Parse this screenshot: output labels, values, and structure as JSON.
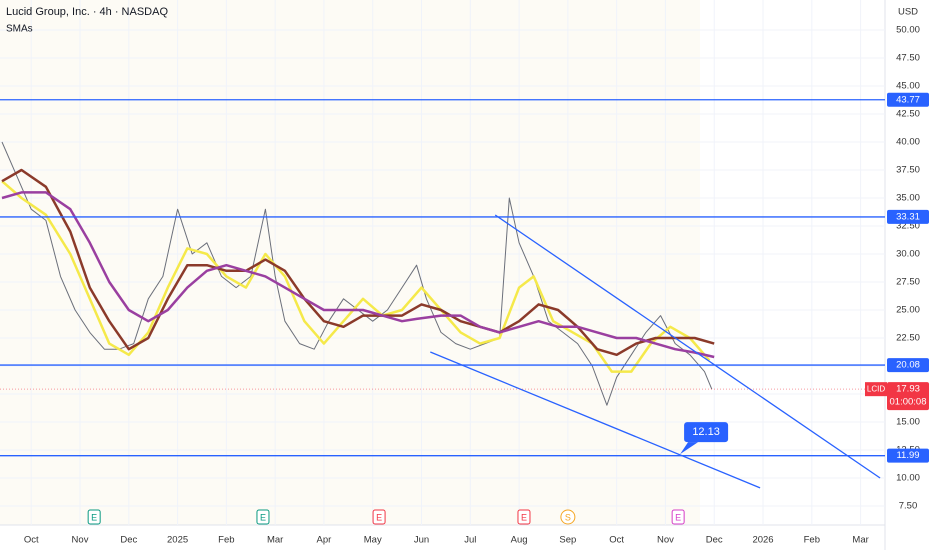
{
  "chart_data": {
    "type": "line",
    "title": "Lucid Group, Inc. · 4h · NASDAQ",
    "subtitle": "SMAs",
    "currency": "USD",
    "xlim": [
      -0.64,
      17.5
    ],
    "ylim": [
      5.8,
      52.68
    ],
    "xticks": [
      {
        "value": 0,
        "label": "Oct"
      },
      {
        "value": 1,
        "label": "Nov"
      },
      {
        "value": 2,
        "label": "Dec"
      },
      {
        "value": 3,
        "label": "2025"
      },
      {
        "value": 4,
        "label": "Feb"
      },
      {
        "value": 5,
        "label": "Mar"
      },
      {
        "value": 6,
        "label": "Apr"
      },
      {
        "value": 7,
        "label": "May"
      },
      {
        "value": 8,
        "label": "Jun"
      },
      {
        "value": 9,
        "label": "Jul"
      },
      {
        "value": 10,
        "label": "Aug"
      },
      {
        "value": 11,
        "label": "Sep"
      },
      {
        "value": 12,
        "label": "Oct"
      },
      {
        "value": 13,
        "label": "Nov"
      },
      {
        "value": 14,
        "label": "Dec"
      },
      {
        "value": 15,
        "label": "2026"
      },
      {
        "value": 16,
        "label": "Feb"
      },
      {
        "value": 17,
        "label": "Mar"
      }
    ],
    "yticks": [
      {
        "value": 7.5,
        "label": "7.50"
      },
      {
        "value": 10,
        "label": "10.00"
      },
      {
        "value": 12.5,
        "label": "12.50"
      },
      {
        "value": 15,
        "label": "15.00"
      },
      {
        "value": 17.5,
        "label": "17.50"
      },
      {
        "value": 20,
        "label": "20.00"
      },
      {
        "value": 22.5,
        "label": "22.50"
      },
      {
        "value": 25,
        "label": "25.00"
      },
      {
        "value": 27.5,
        "label": "27.50"
      },
      {
        "value": 30,
        "label": "30.00"
      },
      {
        "value": 32.5,
        "label": "32.50"
      },
      {
        "value": 35,
        "label": "35.00"
      },
      {
        "value": 37.5,
        "label": "37.50"
      },
      {
        "value": 40,
        "label": "40.00"
      },
      {
        "value": 42.5,
        "label": "42.50"
      },
      {
        "value": 45,
        "label": "45.00"
      },
      {
        "value": 47.5,
        "label": "47.50"
      },
      {
        "value": 50,
        "label": "50.00"
      }
    ],
    "series": [
      {
        "color": "#6b6f7a",
        "x": [
          -0.6,
          -0.3,
          0,
          0.3,
          0.6,
          0.9,
          1.2,
          1.5,
          1.8,
          2.1,
          2.4,
          2.7,
          3.0,
          3.3,
          3.6,
          3.9,
          4.2,
          4.5,
          4.8,
          5.0,
          5.2,
          5.5,
          5.8,
          6.1,
          6.4,
          6.7,
          7.0,
          7.3,
          7.6,
          7.9,
          8.1,
          8.4,
          8.7,
          9.0,
          9.3,
          9.6,
          9.8,
          10.0,
          10.3,
          10.6,
          10.9,
          11.2,
          11.5,
          11.8,
          12.0,
          12.3,
          12.6,
          12.9,
          13.2,
          13.5,
          13.8,
          13.95
        ],
        "values": [
          40,
          37,
          34,
          33,
          28,
          25,
          23,
          21.5,
          21.5,
          22,
          26,
          28,
          34,
          30,
          31,
          28,
          27,
          28,
          34,
          28,
          24,
          22,
          21.5,
          24,
          26,
          25,
          24,
          25,
          27,
          29,
          26,
          23,
          22,
          21.5,
          22,
          22.5,
          35,
          31,
          28,
          24,
          23,
          22,
          20,
          16.5,
          19,
          21,
          23,
          24.5,
          22,
          21,
          19.5,
          17.93
        ]
      },
      {
        "color": "#f5e94a",
        "x": [
          -0.6,
          -0.2,
          0.3,
          0.8,
          1.2,
          1.6,
          2.0,
          2.4,
          2.8,
          3.2,
          3.6,
          4.0,
          4.4,
          4.8,
          5.2,
          5.6,
          6.0,
          6.4,
          6.8,
          7.2,
          7.6,
          8.0,
          8.4,
          8.8,
          9.2,
          9.6,
          10.0,
          10.3,
          10.7,
          11.1,
          11.5,
          11.9,
          12.3,
          12.7,
          13.1,
          13.5,
          13.9
        ],
        "values": [
          36.5,
          35,
          33.5,
          30,
          26,
          22,
          21,
          23,
          27,
          30.5,
          30,
          28,
          27,
          30,
          28,
          24,
          22,
          24,
          26,
          24.5,
          25,
          27,
          25,
          23,
          22,
          22.5,
          27,
          28,
          24,
          23,
          22,
          19.5,
          19.5,
          22,
          23.5,
          22.5,
          20.5
        ]
      },
      {
        "color": "#8b3a2a",
        "x": [
          -0.6,
          -0.2,
          0.3,
          0.8,
          1.2,
          1.6,
          2.0,
          2.4,
          2.8,
          3.2,
          3.6,
          4.0,
          4.4,
          4.8,
          5.2,
          5.6,
          6.0,
          6.4,
          6.8,
          7.2,
          7.6,
          8.0,
          8.4,
          8.8,
          9.2,
          9.6,
          10.0,
          10.4,
          10.8,
          11.2,
          11.6,
          12.0,
          12.4,
          12.8,
          13.2,
          13.6,
          14.0
        ],
        "values": [
          36.5,
          37.5,
          36,
          32,
          27,
          24,
          21.5,
          22.5,
          26,
          29,
          29,
          28.5,
          28.5,
          29.5,
          28.5,
          26,
          24,
          23.5,
          24.5,
          24.5,
          24.5,
          25.5,
          25,
          24,
          23.5,
          23,
          24,
          25.5,
          25,
          23.5,
          21.5,
          21,
          22,
          22.5,
          22.5,
          22.5,
          22
        ]
      },
      {
        "color": "#9a3fa0",
        "x": [
          -0.6,
          -0.2,
          0.3,
          0.8,
          1.2,
          1.6,
          2.0,
          2.4,
          2.8,
          3.2,
          3.6,
          4.0,
          4.4,
          4.8,
          5.2,
          5.6,
          6.0,
          6.4,
          6.8,
          7.2,
          7.6,
          7.9,
          8.4,
          8.8,
          9.2,
          9.6,
          10.0,
          10.4,
          10.8,
          11.2,
          11.6,
          12.0,
          12.4,
          12.8,
          13.2,
          13.6,
          14.0
        ],
        "values": [
          35,
          35.5,
          35.5,
          34,
          31,
          27.5,
          25,
          24,
          25,
          27,
          28.5,
          29,
          28.5,
          28,
          27,
          26,
          25,
          25,
          25,
          24.5,
          24,
          24.2,
          24.5,
          24.5,
          23.5,
          23,
          23.5,
          24,
          23.5,
          23.5,
          23,
          22.5,
          22.5,
          22,
          21.5,
          21.2,
          20.8
        ]
      }
    ],
    "levels": [
      43.77,
      33.31,
      20.08,
      11.99
    ],
    "level_color": "#2962ff",
    "trendlines": [
      {
        "x": [
          9.51,
          17.4
        ],
        "values": [
          33.48,
          10
        ]
      },
      {
        "x": [
          8.18,
          14.94
        ],
        "values": [
          21.25,
          9.11
        ]
      }
    ],
    "callout": {
      "x": 13.3,
      "value": 12.13
    },
    "last_price": {
      "symbol": "LCID",
      "value": 17.93,
      "countdown": "01:00:08",
      "color": "#f23645"
    },
    "events": [
      {
        "label": "E",
        "x": 1.29,
        "color": "#089981"
      },
      {
        "label": "E",
        "x": 4.75,
        "color": "#089981"
      },
      {
        "label": "E",
        "x": 7.13,
        "color": "#f23645"
      },
      {
        "label": "E",
        "x": 10.1,
        "color": "#f23645"
      },
      {
        "label": "S",
        "x": 11.0,
        "color": "#f5a623"
      },
      {
        "label": "E",
        "x": 13.26,
        "color": "#d63cc8"
      }
    ]
  }
}
